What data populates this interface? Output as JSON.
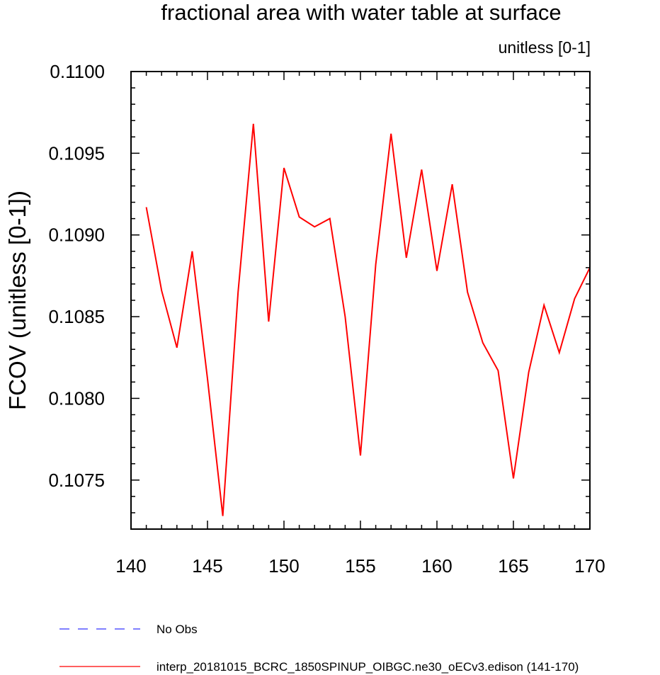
{
  "chart_data": {
    "type": "line",
    "title": "fractional area with water table at surface",
    "units_label": "unitless [0-1]",
    "xlabel": "",
    "ylabel": "FCOV  (unitless [0-1])",
    "xlim": [
      140,
      170
    ],
    "ylim": [
      0.1072,
      0.11
    ],
    "x_ticks": [
      140,
      145,
      150,
      155,
      160,
      165,
      170
    ],
    "x_tick_labels": [
      "140",
      "145",
      "150",
      "155",
      "160",
      "165",
      "170"
    ],
    "y_ticks": [
      0.1075,
      0.108,
      0.1085,
      0.109,
      0.1095,
      0.11
    ],
    "y_tick_labels": [
      "0.1075",
      "0.1080",
      "0.1085",
      "0.1090",
      "0.1095",
      "0.1100"
    ],
    "grid": false,
    "series": [
      {
        "name": "interp_20181015_BCRC_1850SPINUP_OIBGC.ne30_oECv3.edison (141-170)",
        "color": "#ff0000",
        "style": "solid",
        "x": [
          141,
          142,
          143,
          144,
          145,
          146,
          147,
          148,
          149,
          150,
          151,
          152,
          153,
          154,
          155,
          156,
          157,
          158,
          159,
          160,
          161,
          162,
          163,
          164,
          165,
          166,
          167,
          168,
          169,
          170
        ],
        "values": [
          0.10917,
          0.10866,
          0.10831,
          0.1089,
          0.10812,
          0.10728,
          0.10865,
          0.10968,
          0.10847,
          0.10941,
          0.10911,
          0.10905,
          0.1091,
          0.1085,
          0.10765,
          0.10882,
          0.10962,
          0.10886,
          0.1094,
          0.10878,
          0.10931,
          0.10865,
          0.10834,
          0.10817,
          0.10751,
          0.10816,
          0.10857,
          0.10828,
          0.10861,
          0.1088
        ]
      }
    ],
    "legend": [
      {
        "label": "No Obs",
        "color": "#0000ff",
        "style": "dashed"
      },
      {
        "label": "interp_20181015_BCRC_1850SPINUP_OIBGC.ne30_oECv3.edison (141-170)",
        "color": "#ff0000",
        "style": "solid"
      }
    ]
  }
}
